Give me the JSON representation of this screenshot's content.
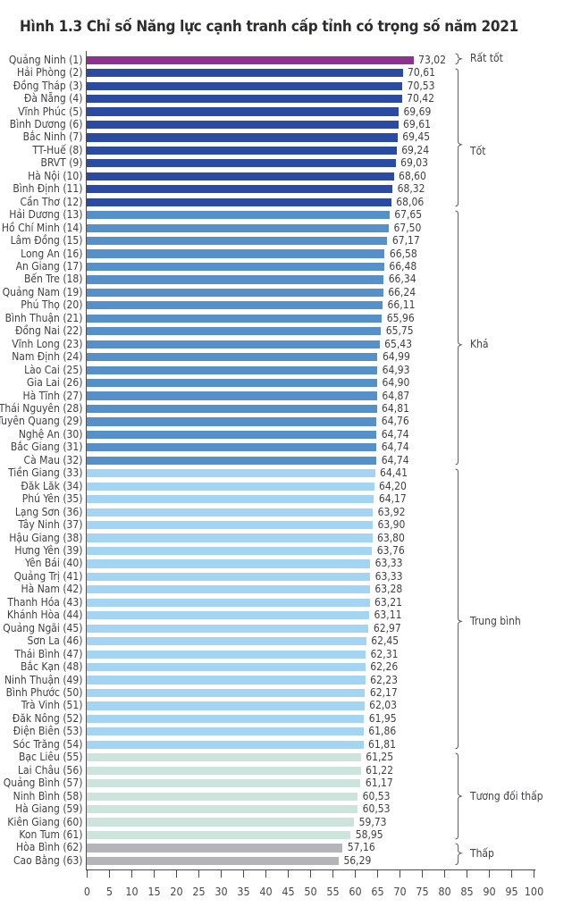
{
  "title": "Hình 1.3 Chỉ số Năng lực cạnh tranh cấp tỉnh có trọng số năm 2021",
  "chart_data": {
    "type": "bar",
    "orientation": "horizontal",
    "title": "Hình 1.3 Chỉ số Năng lực cạnh tranh cấp tỉnh có trọng số năm 2021",
    "xlabel": "",
    "ylabel": "",
    "xlim": [
      0,
      100
    ],
    "x_ticks": [
      0,
      5,
      10,
      15,
      20,
      25,
      30,
      35,
      40,
      45,
      50,
      55,
      60,
      65,
      70,
      75,
      80,
      85,
      90,
      95,
      100
    ],
    "grid": false,
    "legend_position": "right-brackets",
    "provinces": [
      {
        "label": "Quảng Ninh (1)",
        "value": 73.02,
        "display": "73,02"
      },
      {
        "label": "Hải Phòng (2)",
        "value": 70.61,
        "display": "70,61"
      },
      {
        "label": "Đồng Tháp (3)",
        "value": 70.53,
        "display": "70,53"
      },
      {
        "label": "Đà Nẵng (4)",
        "value": 70.42,
        "display": "70,42"
      },
      {
        "label": "Vĩnh Phúc (5)",
        "value": 69.69,
        "display": "69,69"
      },
      {
        "label": "Bình Dương (6)",
        "value": 69.61,
        "display": "69,61"
      },
      {
        "label": "Bắc Ninh (7)",
        "value": 69.45,
        "display": "69,45"
      },
      {
        "label": "TT-Huế (8)",
        "value": 69.24,
        "display": "69,24"
      },
      {
        "label": "BRVT (9)",
        "value": 69.03,
        "display": "69,03"
      },
      {
        "label": "Hà Nội (10)",
        "value": 68.6,
        "display": "68,60"
      },
      {
        "label": "Bình Định (11)",
        "value": 68.32,
        "display": "68,32"
      },
      {
        "label": "Cần Thơ (12)",
        "value": 68.06,
        "display": "68,06"
      },
      {
        "label": "Hải Dương (13)",
        "value": 67.65,
        "display": "67,65"
      },
      {
        "label": "TP. Hồ Chí Minh (14)",
        "value": 67.5,
        "display": "67,50"
      },
      {
        "label": "Lâm Đồng (15)",
        "value": 67.17,
        "display": "67,17"
      },
      {
        "label": "Long An (16)",
        "value": 66.58,
        "display": "66,58"
      },
      {
        "label": "An Giang (17)",
        "value": 66.48,
        "display": "66,48"
      },
      {
        "label": "Bến Tre (18)",
        "value": 66.34,
        "display": "66,34"
      },
      {
        "label": "Quảng Nam (19)",
        "value": 66.24,
        "display": "66,24"
      },
      {
        "label": "Phú Thọ (20)",
        "value": 66.11,
        "display": "66,11"
      },
      {
        "label": "Bình Thuận (21)",
        "value": 65.96,
        "display": "65,96"
      },
      {
        "label": "Đồng Nai (22)",
        "value": 65.75,
        "display": "65,75"
      },
      {
        "label": "Vĩnh Long (23)",
        "value": 65.43,
        "display": "65,43"
      },
      {
        "label": "Nam Định (24)",
        "value": 64.99,
        "display": "64,99"
      },
      {
        "label": "Lào Cai (25)",
        "value": 64.93,
        "display": "64,93"
      },
      {
        "label": "Gia Lai (26)",
        "value": 64.9,
        "display": "64,90"
      },
      {
        "label": "Hà Tĩnh (27)",
        "value": 64.87,
        "display": "64,87"
      },
      {
        "label": "Thái Nguyên (28)",
        "value": 64.81,
        "display": "64,81"
      },
      {
        "label": "Tuyên Quang (29)",
        "value": 64.76,
        "display": "64,76"
      },
      {
        "label": "Nghệ An (30)",
        "value": 64.74,
        "display": "64,74"
      },
      {
        "label": "Bắc Giang (31)",
        "value": 64.74,
        "display": "64,74"
      },
      {
        "label": "Cà Mau (32)",
        "value": 64.74,
        "display": "64,74"
      },
      {
        "label": "Tiền Giang (33)",
        "value": 64.41,
        "display": "64,41"
      },
      {
        "label": "Đăk Lăk (34)",
        "value": 64.2,
        "display": "64,20"
      },
      {
        "label": "Phú Yên (35)",
        "value": 64.17,
        "display": "64,17"
      },
      {
        "label": "Lạng Sơn (36)",
        "value": 63.92,
        "display": "63,92"
      },
      {
        "label": "Tây Ninh (37)",
        "value": 63.9,
        "display": "63,90"
      },
      {
        "label": "Hậu Giang (38)",
        "value": 63.8,
        "display": "63,80"
      },
      {
        "label": "Hưng Yên (39)",
        "value": 63.76,
        "display": "63,76"
      },
      {
        "label": "Yên Bái (40)",
        "value": 63.33,
        "display": "63,33"
      },
      {
        "label": "Quảng Trị (41)",
        "value": 63.33,
        "display": "63,33"
      },
      {
        "label": "Hà Nam (42)",
        "value": 63.28,
        "display": "63,28"
      },
      {
        "label": "Thanh Hóa (43)",
        "value": 63.21,
        "display": "63,21"
      },
      {
        "label": "Khánh Hòa (44)",
        "value": 63.11,
        "display": "63,11"
      },
      {
        "label": "Quảng Ngãi (45)",
        "value": 62.97,
        "display": "62,97"
      },
      {
        "label": "Sơn La (46)",
        "value": 62.45,
        "display": "62,45"
      },
      {
        "label": "Thái Bình (47)",
        "value": 62.31,
        "display": "62,31"
      },
      {
        "label": "Bắc Kạn (48)",
        "value": 62.26,
        "display": "62,26"
      },
      {
        "label": "Ninh Thuận (49)",
        "value": 62.23,
        "display": "62,23"
      },
      {
        "label": "Bình Phước (50)",
        "value": 62.17,
        "display": "62,17"
      },
      {
        "label": "Trà Vinh (51)",
        "value": 62.03,
        "display": "62,03"
      },
      {
        "label": "Đăk Nông (52)",
        "value": 61.95,
        "display": "61,95"
      },
      {
        "label": "Điện Biên (53)",
        "value": 61.86,
        "display": "61,86"
      },
      {
        "label": "Sóc Trăng (54)",
        "value": 61.81,
        "display": "61,81"
      },
      {
        "label": "Bạc Liêu (55)",
        "value": 61.25,
        "display": "61,25"
      },
      {
        "label": "Lai Châu (56)",
        "value": 61.22,
        "display": "61,22"
      },
      {
        "label": "Quảng Bình (57)",
        "value": 61.17,
        "display": "61,17"
      },
      {
        "label": "Ninh Bình (58)",
        "value": 60.53,
        "display": "60,53"
      },
      {
        "label": "Hà Giang (59)",
        "value": 60.53,
        "display": "60,53"
      },
      {
        "label": "Kiên Giang (60)",
        "value": 59.73,
        "display": "59,73"
      },
      {
        "label": "Kon Tum (61)",
        "value": 58.95,
        "display": "58,95"
      },
      {
        "label": "Hòa Bình (62)",
        "value": 57.16,
        "display": "57,16"
      },
      {
        "label": "Cao Bằng (63)",
        "value": 56.29,
        "display": "56,29"
      }
    ],
    "groups": [
      {
        "label": "Rất tốt",
        "from_rank": 1,
        "to_rank": 1,
        "bar_color": "#8e3191"
      },
      {
        "label": "Tốt",
        "from_rank": 2,
        "to_rank": 12,
        "bar_color": "#2a4ba1"
      },
      {
        "label": "Khá",
        "from_rank": 13,
        "to_rank": 32,
        "bar_color": "#5590c8"
      },
      {
        "label": "Trung bình",
        "from_rank": 33,
        "to_rank": 54,
        "bar_color": "#a3d4f2"
      },
      {
        "label": "Tương đối thấp",
        "from_rank": 55,
        "to_rank": 61,
        "bar_color": "#cce4dc"
      },
      {
        "label": "Thấp",
        "from_rank": 62,
        "to_rank": 63,
        "bar_color": "#b5b4b8"
      }
    ],
    "colors": {
      "axis": "#4b4b4e",
      "text": "#414144",
      "bracket": "#57575a",
      "title": "#2d2d30",
      "background": "#ffffff"
    }
  }
}
